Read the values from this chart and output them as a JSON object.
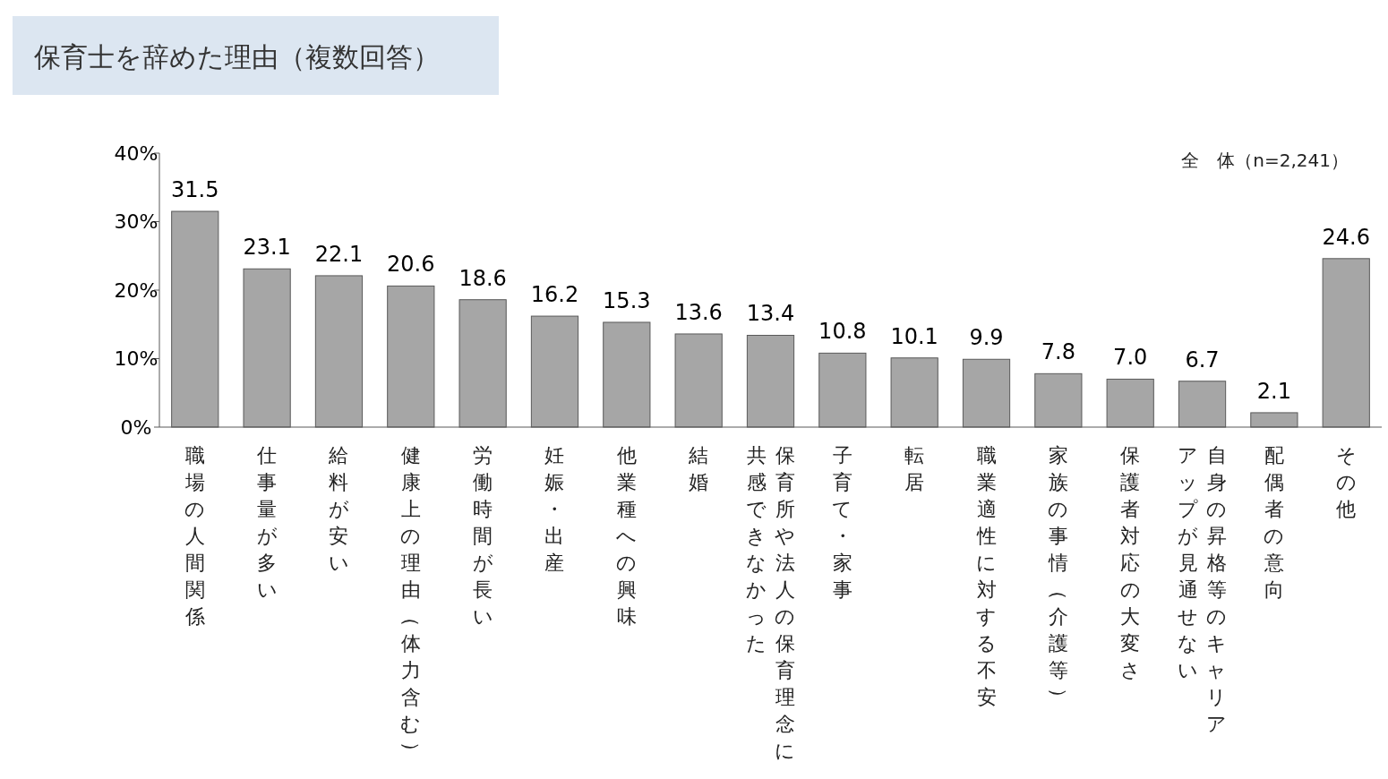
{
  "chart_data": {
    "type": "bar",
    "title": "保育士を辞めた理由（複数回答）",
    "annotations": [
      "全　体（n=2,241）"
    ],
    "categories": [
      "職場の人間関係",
      "仕事量が多い",
      "給料が安い",
      "健康上の理由（体力含む）",
      "労働時間が長い",
      "妊娠・出産",
      "他業種への興味",
      "結婚",
      "保育所や法人の保育理念に共感できなかった",
      "子育て・家事",
      "転居",
      "職業適性に対する不安",
      "家族の事情（介護等）",
      "保護者対応の大変さ",
      "自身の昇格等のキャリアアップが見通せない",
      "配偶者の意向",
      "その他"
    ],
    "values": [
      31.5,
      23.1,
      22.1,
      20.6,
      18.6,
      16.2,
      15.3,
      13.6,
      13.4,
      10.8,
      10.1,
      9.9,
      7.8,
      7.0,
      6.7,
      2.1,
      24.6
    ],
    "value_labels": [
      "31.5",
      "23.1",
      "22.1",
      "20.6",
      "18.6",
      "16.2",
      "15.3",
      "13.6",
      "13.4",
      "10.8",
      "10.1",
      "9.9",
      "7.8",
      "7.0",
      "6.7",
      "2.1",
      "24.6"
    ],
    "color": "#a6a6a6",
    "ylim": [
      0,
      40
    ],
    "yticks": [
      {
        "value": 0,
        "label": "0%"
      },
      {
        "value": 10,
        "label": "10%"
      },
      {
        "value": 20,
        "label": "20%"
      },
      {
        "value": 30,
        "label": "30%"
      },
      {
        "value": 40,
        "label": "40%"
      }
    ],
    "grid": false
  }
}
